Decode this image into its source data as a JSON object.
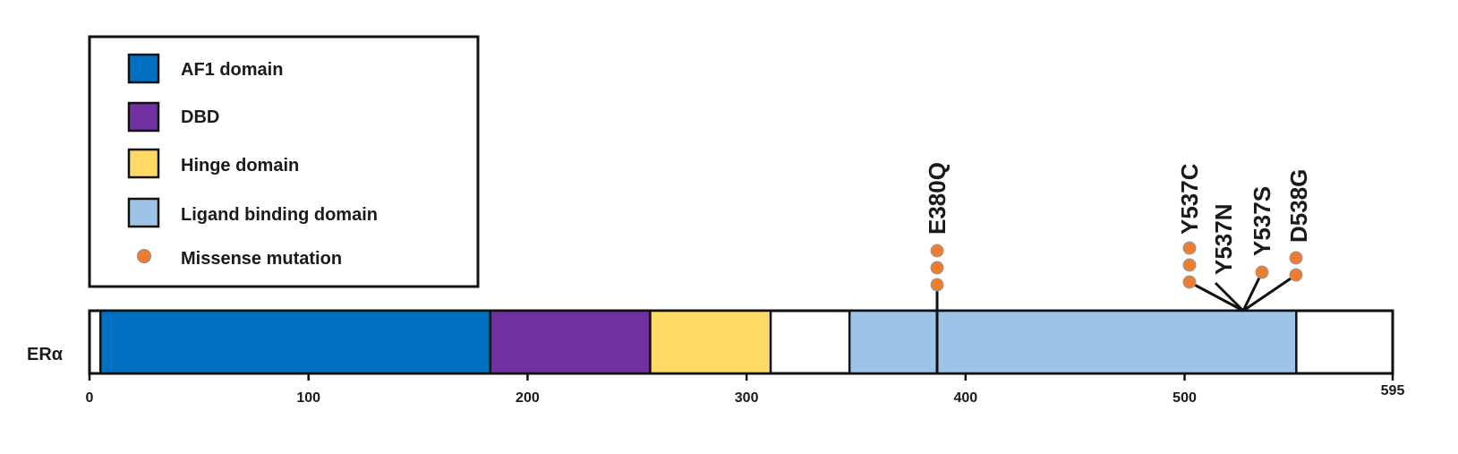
{
  "legend": {
    "items": [
      {
        "key": "af1",
        "label": "AF1 domain",
        "color": "#0070C0",
        "symbol": "square"
      },
      {
        "key": "dbd",
        "label": "DBD",
        "color": "#7030A0",
        "symbol": "square"
      },
      {
        "key": "hinge",
        "label": "Hinge domain",
        "color": "#FFD966",
        "symbol": "square"
      },
      {
        "key": "lbd",
        "label": "Ligand binding domain",
        "color": "#9DC3E6",
        "symbol": "square"
      },
      {
        "key": "mutation",
        "label": "Missense mutation",
        "color": "#ED7D31",
        "symbol": "circle"
      }
    ]
  },
  "protein": {
    "name": "ERα",
    "length": 595,
    "axis_ticks": [
      "0",
      "100",
      "200",
      "300",
      "400",
      "500",
      "595"
    ],
    "domains": [
      {
        "key": "af1",
        "start": 5,
        "end": 183,
        "color": "#0070C0"
      },
      {
        "key": "dbd",
        "start": 183,
        "end": 256,
        "color": "#7030A0"
      },
      {
        "key": "hinge",
        "start": 256,
        "end": 311,
        "color": "#FFD966"
      },
      {
        "key": "lbd",
        "start": 347,
        "end": 551,
        "color": "#9DC3E6"
      }
    ],
    "mutations": [
      {
        "label": "E380Q",
        "position": 380,
        "count": 3,
        "group": "E380Q"
      },
      {
        "label": "Y537C",
        "position": 537,
        "count": 3,
        "group": "537-538"
      },
      {
        "label": "Y537N",
        "position": 537,
        "count": 0,
        "group": "537-538"
      },
      {
        "label": "Y537S",
        "position": 537,
        "count": 1,
        "group": "537-538"
      },
      {
        "label": "D538G",
        "position": 538,
        "count": 2,
        "group": "537-538"
      }
    ]
  }
}
